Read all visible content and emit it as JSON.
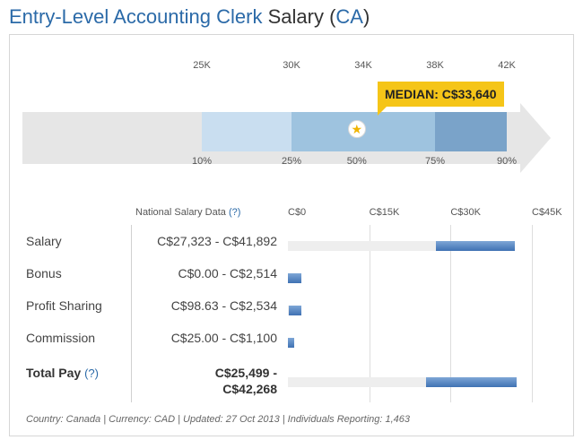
{
  "title": {
    "job": "Entry-Level Accounting Clerk",
    "word": "Salary",
    "open_paren": "(",
    "region": "CA",
    "close_paren": ")"
  },
  "chart_data": [
    {
      "type": "bar",
      "subtype": "percentile-range",
      "top_ticks": [
        "25K",
        "30K",
        "34K",
        "38K",
        "42K"
      ],
      "top_tick_values": [
        25000,
        30000,
        34000,
        38000,
        42000
      ],
      "percentile_labels": [
        "10%",
        "25%",
        "50%",
        "75%",
        "90%"
      ],
      "percentile_values": [
        25000,
        30000,
        33640,
        38000,
        42000
      ],
      "band_colors": [
        "#c9def0",
        "#9ec3df",
        "#7aa3c9"
      ],
      "median": {
        "label": "MEDIAN: C$33,640",
        "value": 33640,
        "icon": "star-icon",
        "color": "#f5c518"
      },
      "x_range": [
        15000,
        44000
      ]
    },
    {
      "type": "bar",
      "subtype": "range",
      "header": "National Salary Data",
      "header_help": "(?)",
      "axis_ticks": [
        "C$0",
        "C$15K",
        "C$30K",
        "C$45K"
      ],
      "axis_values": [
        0,
        15000,
        30000,
        45000
      ],
      "xlim": [
        0,
        45000
      ],
      "bar_color": "#4f7fbf",
      "rows": [
        {
          "label": "Salary",
          "help": "",
          "range_text": "C$27,323 - C$41,892",
          "range_line1": "",
          "range_line2": "",
          "min": 27323,
          "max": 41892,
          "bold": false
        },
        {
          "label": "Bonus",
          "help": "",
          "range_text": "C$0.00 - C$2,514",
          "range_line1": "",
          "range_line2": "",
          "min": 0,
          "max": 2514,
          "bold": false
        },
        {
          "label": "Profit Sharing",
          "help": "",
          "range_text": "C$98.63 - C$2,534",
          "range_line1": "",
          "range_line2": "",
          "min": 98.63,
          "max": 2534,
          "bold": false
        },
        {
          "label": "Commission",
          "help": "",
          "range_text": "C$25.00 - C$1,100",
          "range_line1": "",
          "range_line2": "",
          "min": 25,
          "max": 1100,
          "bold": false
        },
        {
          "label": "Total Pay",
          "help": "(?)",
          "range_text": "",
          "range_line1": "C$25,499 -",
          "range_line2": "C$42,268",
          "min": 25499,
          "max": 42268,
          "bold": true
        }
      ]
    }
  ],
  "footer": "Country: Canada | Currency: CAD | Updated: 27 Oct 2013 | Individuals Reporting: 1,463"
}
